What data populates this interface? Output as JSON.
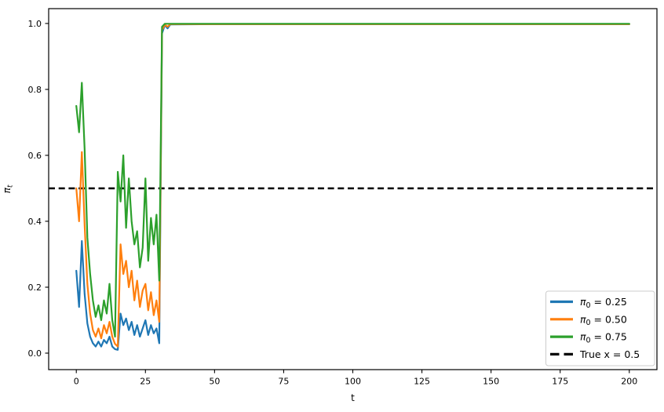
{
  "figure": {
    "background": "#ffffff",
    "spine_color": "#000000"
  },
  "chart_data": {
    "type": "line",
    "title": "",
    "xlabel": "t",
    "ylabel": {
      "pre": "π",
      "sub": "t"
    },
    "xlim": [
      -10,
      210
    ],
    "ylim": [
      -0.05,
      1.045
    ],
    "grid": false,
    "legend_position": "lower right",
    "x_ticks": [
      0,
      25,
      50,
      75,
      100,
      125,
      150,
      175,
      200
    ],
    "x_tick_labels": [
      "0",
      "25",
      "50",
      "75",
      "100",
      "125",
      "150",
      "175",
      "200"
    ],
    "y_ticks": [
      0.0,
      0.2,
      0.4,
      0.6,
      0.8,
      1.0
    ],
    "y_tick_labels": [
      "0.0",
      "0.2",
      "0.4",
      "0.6",
      "0.8",
      "1.0"
    ],
    "x": [
      0,
      1,
      2,
      3,
      4,
      5,
      6,
      7,
      8,
      9,
      10,
      11,
      12,
      13,
      14,
      15,
      16,
      17,
      18,
      19,
      20,
      21,
      22,
      23,
      24,
      25,
      26,
      27,
      28,
      29,
      30,
      31,
      32,
      33,
      34,
      50,
      75,
      100,
      125,
      150,
      175,
      200
    ],
    "series": [
      {
        "id": "pi0-025",
        "legend": {
          "pre": "π",
          "sub": "0",
          "post": " = 0.25"
        },
        "color": "#1f77b4",
        "dashed": false,
        "values": [
          0.25,
          0.14,
          0.34,
          0.18,
          0.09,
          0.05,
          0.03,
          0.02,
          0.035,
          0.02,
          0.04,
          0.03,
          0.05,
          0.02,
          0.012,
          0.01,
          0.12,
          0.085,
          0.105,
          0.07,
          0.095,
          0.055,
          0.085,
          0.05,
          0.075,
          0.1,
          0.055,
          0.085,
          0.06,
          0.075,
          0.03,
          0.97,
          0.995,
          0.985,
          0.997,
          0.998,
          0.998,
          0.998,
          0.998,
          0.998,
          0.998,
          0.998
        ]
      },
      {
        "id": "pi0-050",
        "legend": {
          "pre": "π",
          "sub": "0",
          "post": " = 0.50"
        },
        "color": "#ff7f0e",
        "dashed": false,
        "values": [
          0.5,
          0.4,
          0.61,
          0.39,
          0.21,
          0.12,
          0.07,
          0.05,
          0.075,
          0.045,
          0.085,
          0.06,
          0.095,
          0.05,
          0.028,
          0.02,
          0.33,
          0.24,
          0.28,
          0.2,
          0.25,
          0.16,
          0.22,
          0.14,
          0.19,
          0.21,
          0.13,
          0.185,
          0.115,
          0.16,
          0.095,
          0.98,
          0.996,
          0.99,
          0.998,
          0.998,
          0.998,
          0.998,
          0.998,
          0.998,
          0.998,
          0.998
        ]
      },
      {
        "id": "pi0-075",
        "legend": {
          "pre": "π",
          "sub": "0",
          "post": " = 0.75"
        },
        "color": "#2ca02c",
        "dashed": false,
        "values": [
          0.75,
          0.67,
          0.82,
          0.62,
          0.35,
          0.24,
          0.16,
          0.11,
          0.145,
          0.1,
          0.16,
          0.12,
          0.21,
          0.1,
          0.05,
          0.55,
          0.46,
          0.6,
          0.38,
          0.53,
          0.4,
          0.33,
          0.37,
          0.26,
          0.32,
          0.53,
          0.28,
          0.41,
          0.33,
          0.42,
          0.22,
          0.99,
          0.999,
          0.999,
          0.999,
          0.999,
          0.999,
          0.999,
          0.999,
          0.999,
          0.999,
          0.999
        ]
      },
      {
        "id": "true-x",
        "legend": {
          "pre": "True x = 0.5",
          "sub": "",
          "post": ""
        },
        "color": "#000000",
        "dashed": true,
        "hline": 0.5
      }
    ],
    "legend_frame_color": "#cccccc"
  }
}
